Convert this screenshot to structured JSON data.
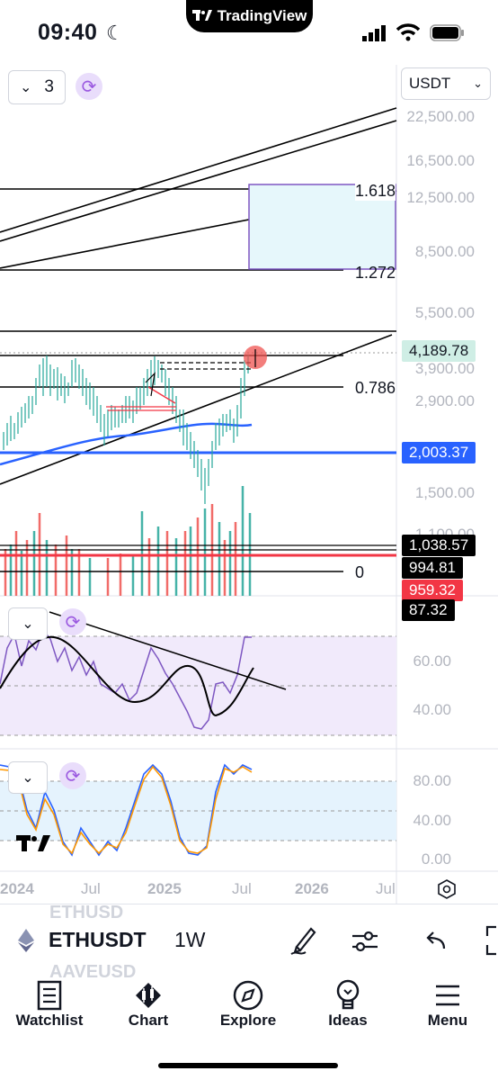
{
  "status": {
    "time": "09:40",
    "app_pill": "TradingView"
  },
  "chart": {
    "layout_count": "3",
    "currency": "USDT",
    "price_axis": [
      "22,500.00",
      "16,500.00",
      "12,500.00",
      "8,500.00",
      "5,500.00",
      "3,900.00",
      "2,900.00",
      "1,500.00",
      "1,100.00"
    ],
    "fib_labels": [
      "1.618",
      "1.272",
      "0.786",
      "0"
    ],
    "price_tags": [
      {
        "text": "4,189.78",
        "bg": "#cfeee5",
        "fg": "#131722"
      },
      {
        "text": "2,003.37",
        "bg": "#2962ff",
        "fg": "#ffffff"
      },
      {
        "text": "1,038.57",
        "bg": "#000000",
        "fg": "#ffffff"
      },
      {
        "text": "994.81",
        "bg": "#000000",
        "fg": "#ffffff"
      },
      {
        "text": "959.32",
        "bg": "#f23645",
        "fg": "#ffffff"
      },
      {
        "text": "87.32",
        "bg": "#000000",
        "fg": "#ffffff"
      }
    ],
    "rsi_axis": [
      "60.00",
      "40.00"
    ],
    "stoch_axis": [
      "80.00",
      "40.00",
      "0.00"
    ],
    "time_axis": [
      "2024",
      "Jul",
      "2025",
      "Jul",
      "2026",
      "Jul"
    ]
  },
  "symbol_bar": {
    "symbol": "ETHUSDT",
    "interval": "1W",
    "ghost_top": "ETHUSD",
    "ghost_bottom": "AAVEUSD"
  },
  "nav": [
    {
      "label": "Watchlist",
      "icon": "watchlist-icon"
    },
    {
      "label": "Chart",
      "icon": "chart-icon"
    },
    {
      "label": "Explore",
      "icon": "compass-icon"
    },
    {
      "label": "Ideas",
      "icon": "lightbulb-icon"
    },
    {
      "label": "Menu",
      "icon": "menu-icon"
    }
  ],
  "colors": {
    "accent": "#2962ff",
    "purple": "#7e57c2",
    "green": "#26a69a",
    "red": "#ef5350"
  }
}
